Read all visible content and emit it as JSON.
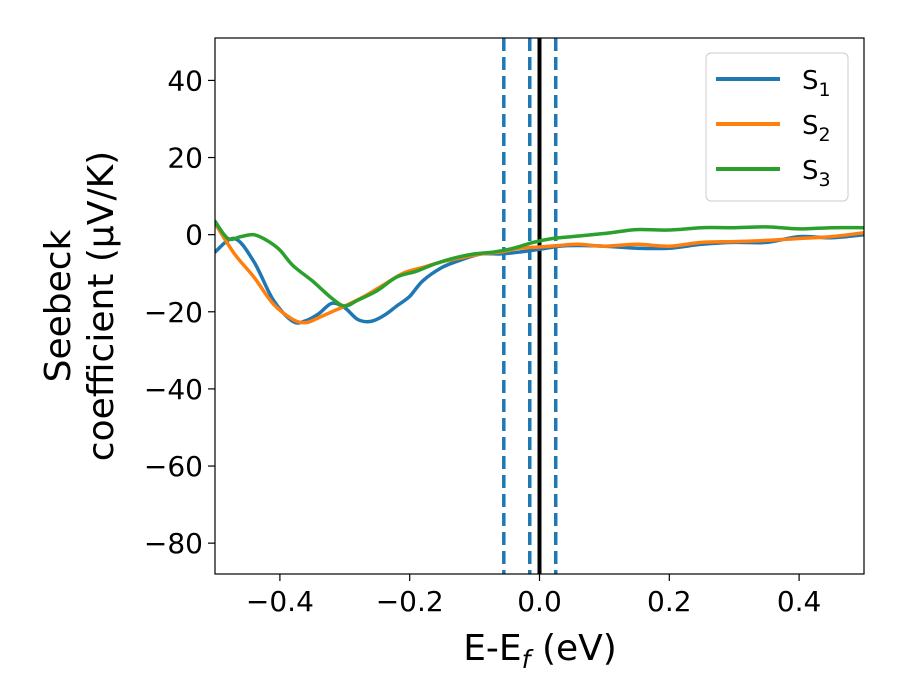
{
  "chart_data": {
    "type": "line",
    "xlabel": "E-E",
    "xlabel_sub": "f",
    "xlabel_unit": "(eV)",
    "ylabel_line1": "Seebeck",
    "ylabel_line2": "coefficient  (μV/K)",
    "xlim": [
      -0.5,
      0.5
    ],
    "ylim": [
      -88,
      51
    ],
    "xticks": [
      -0.4,
      -0.2,
      0.0,
      0.2,
      0.4
    ],
    "xtick_labels": [
      "−0.4",
      "−0.2",
      "0.0",
      "0.2",
      "0.4"
    ],
    "yticks": [
      -80,
      -60,
      -40,
      -20,
      0,
      20,
      40
    ],
    "ytick_labels": [
      "−80",
      "−60",
      "−40",
      "−20",
      "0",
      "20",
      "40"
    ],
    "grid": false,
    "legend_position": "top-right",
    "series": [
      {
        "name": "S",
        "name_sub": "1",
        "color": "#1f77b4",
        "x": [
          -0.5,
          -0.47,
          -0.44,
          -0.41,
          -0.38,
          -0.36,
          -0.34,
          -0.32,
          -0.3,
          -0.28,
          -0.26,
          -0.24,
          -0.22,
          -0.2,
          -0.18,
          -0.15,
          -0.12,
          -0.09,
          -0.06,
          -0.03,
          0.0,
          0.03,
          0.06,
          0.1,
          0.15,
          0.2,
          0.25,
          0.3,
          0.35,
          0.4,
          0.45,
          0.5
        ],
        "y": [
          -4.5,
          -1,
          -7,
          -17,
          -22.5,
          -22.3,
          -20.5,
          -17.8,
          -19,
          -22,
          -22.5,
          -21,
          -18.5,
          -16,
          -12,
          -8.5,
          -6.5,
          -5,
          -5,
          -4.5,
          -3.8,
          -3,
          -2.8,
          -3,
          -3.5,
          -3.5,
          -2.5,
          -2,
          -2,
          -0.5,
          -0.8,
          0
        ]
      },
      {
        "name": "S",
        "name_sub": "2",
        "color": "#ff7f0e",
        "x": [
          -0.5,
          -0.47,
          -0.44,
          -0.41,
          -0.38,
          -0.36,
          -0.34,
          -0.32,
          -0.3,
          -0.27,
          -0.24,
          -0.21,
          -0.18,
          -0.15,
          -0.12,
          -0.09,
          -0.06,
          -0.03,
          0.0,
          0.03,
          0.06,
          0.1,
          0.15,
          0.2,
          0.25,
          0.3,
          0.35,
          0.4,
          0.45,
          0.5
        ],
        "y": [
          3,
          -5,
          -11,
          -18,
          -22,
          -22.8,
          -21.5,
          -20,
          -18.5,
          -16,
          -13,
          -10,
          -8.5,
          -7,
          -6,
          -5,
          -4.5,
          -3.5,
          -3.2,
          -2.8,
          -2.5,
          -3,
          -2.5,
          -3,
          -2,
          -1.8,
          -1.5,
          -1,
          -0.5,
          0.5
        ]
      },
      {
        "name": "S",
        "name_sub": "3",
        "color": "#2ca02c",
        "x": [
          -0.5,
          -0.48,
          -0.46,
          -0.44,
          -0.42,
          -0.4,
          -0.38,
          -0.35,
          -0.32,
          -0.3,
          -0.28,
          -0.25,
          -0.22,
          -0.19,
          -0.16,
          -0.13,
          -0.1,
          -0.07,
          -0.04,
          -0.01,
          0.02,
          0.05,
          0.08,
          0.11,
          0.15,
          0.2,
          0.25,
          0.3,
          0.35,
          0.4,
          0.45,
          0.5
        ],
        "y": [
          3.5,
          -1,
          -0.5,
          0,
          -1.5,
          -4,
          -8,
          -12,
          -16.5,
          -18.5,
          -17,
          -14.5,
          -11,
          -9.5,
          -7.5,
          -6,
          -5,
          -4.5,
          -3.5,
          -2,
          -1,
          -0.5,
          0,
          0.5,
          1.3,
          1.2,
          1.8,
          1.8,
          2.0,
          1.5,
          1.8,
          1.8
        ]
      }
    ],
    "vlines": [
      {
        "x": -0.055,
        "style": "dashed",
        "color": "#1f77b4"
      },
      {
        "x": -0.015,
        "style": "dashed",
        "color": "#1f77b4"
      },
      {
        "x": 0.0,
        "style": "solid",
        "color": "#000000"
      },
      {
        "x": 0.025,
        "style": "dashed",
        "color": "#1f77b4"
      }
    ]
  }
}
